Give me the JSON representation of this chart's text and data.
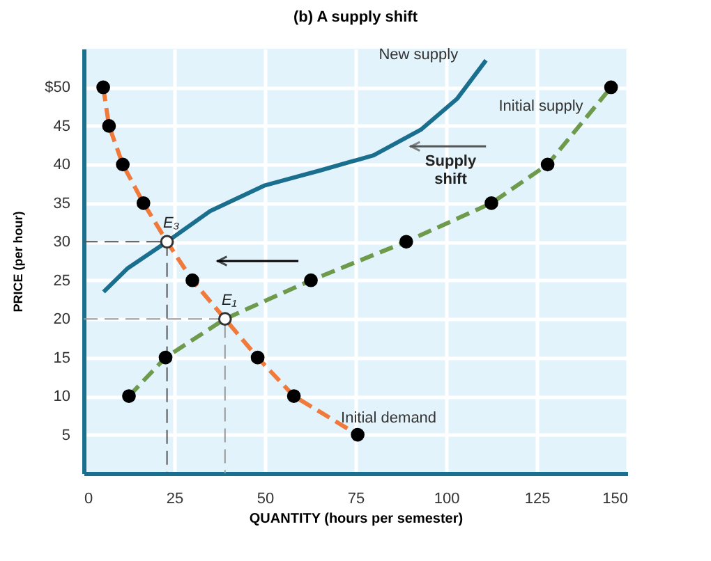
{
  "chart_data": {
    "type": "line",
    "title": "(b) A supply shift",
    "xlabel": "QUANTITY (hours per semester)",
    "ylabel": "PRICE (per hour)",
    "xlim": [
      0,
      150
    ],
    "ylim": [
      0,
      55
    ],
    "xticks": [
      0,
      25,
      50,
      75,
      100,
      125,
      150
    ],
    "yticks": [
      5,
      10,
      15,
      20,
      25,
      30,
      35,
      40,
      45,
      {
        "value": 50,
        "label": "$50"
      }
    ],
    "grid": true,
    "series": [
      {
        "name": "New supply",
        "color": "#1a6f8f",
        "line_style": "solid",
        "x": [
          5.5,
          12,
          23,
          35,
          50,
          65,
          80,
          93,
          103,
          111
        ],
        "values": [
          23.5,
          26.5,
          30,
          34,
          37.3,
          39.2,
          41.2,
          44.5,
          48.5,
          53.5
        ]
      },
      {
        "name": "Initial supply",
        "color": "#6e9a4c",
        "line_style": "dashed",
        "x": [
          12.5,
          22.6,
          39,
          62.7,
          89,
          112.5,
          128,
          145.5
        ],
        "values": [
          10,
          15,
          20,
          25,
          30,
          35,
          40,
          50
        ]
      },
      {
        "name": "Initial demand",
        "color": "#f07a3c",
        "line_style": "dashed",
        "x": [
          5.4,
          7,
          10.8,
          16.5,
          23,
          30,
          39,
          48,
          58,
          75.6
        ],
        "values": [
          50,
          45,
          40,
          35,
          30,
          25,
          20,
          15,
          10,
          5
        ]
      },
      {
        "color": "#555555",
        "line_style": "dashed",
        "x": [
          0,
          23,
          23
        ],
        "values": [
          30,
          30,
          0
        ]
      },
      {
        "color": "#999999",
        "line_style": "dashed",
        "x": [
          0,
          39,
          39
        ],
        "values": [
          20,
          20,
          0
        ]
      },
      {
        "type": "scatter",
        "color": "#000000",
        "marker": "circle",
        "x": [
          12.5,
          22.6,
          62.7,
          89,
          112.5,
          128,
          145.5,
          5.4,
          7,
          10.8,
          16.5,
          30,
          48,
          58,
          75.6
        ],
        "values": [
          10,
          15,
          25,
          30,
          35,
          40,
          50,
          50,
          45,
          40,
          35,
          25,
          15,
          10,
          5
        ]
      },
      {
        "type": "scatter",
        "color": "#ffffff",
        "marker": "circle",
        "x": [
          23,
          39
        ],
        "values": [
          30,
          20
        ]
      }
    ],
    "annotations": [
      "Supply shift",
      {
        "text": "E₃",
        "x": 23,
        "y": 30
      },
      {
        "text": "E₁",
        "x": 39,
        "y": 20
      }
    ]
  }
}
